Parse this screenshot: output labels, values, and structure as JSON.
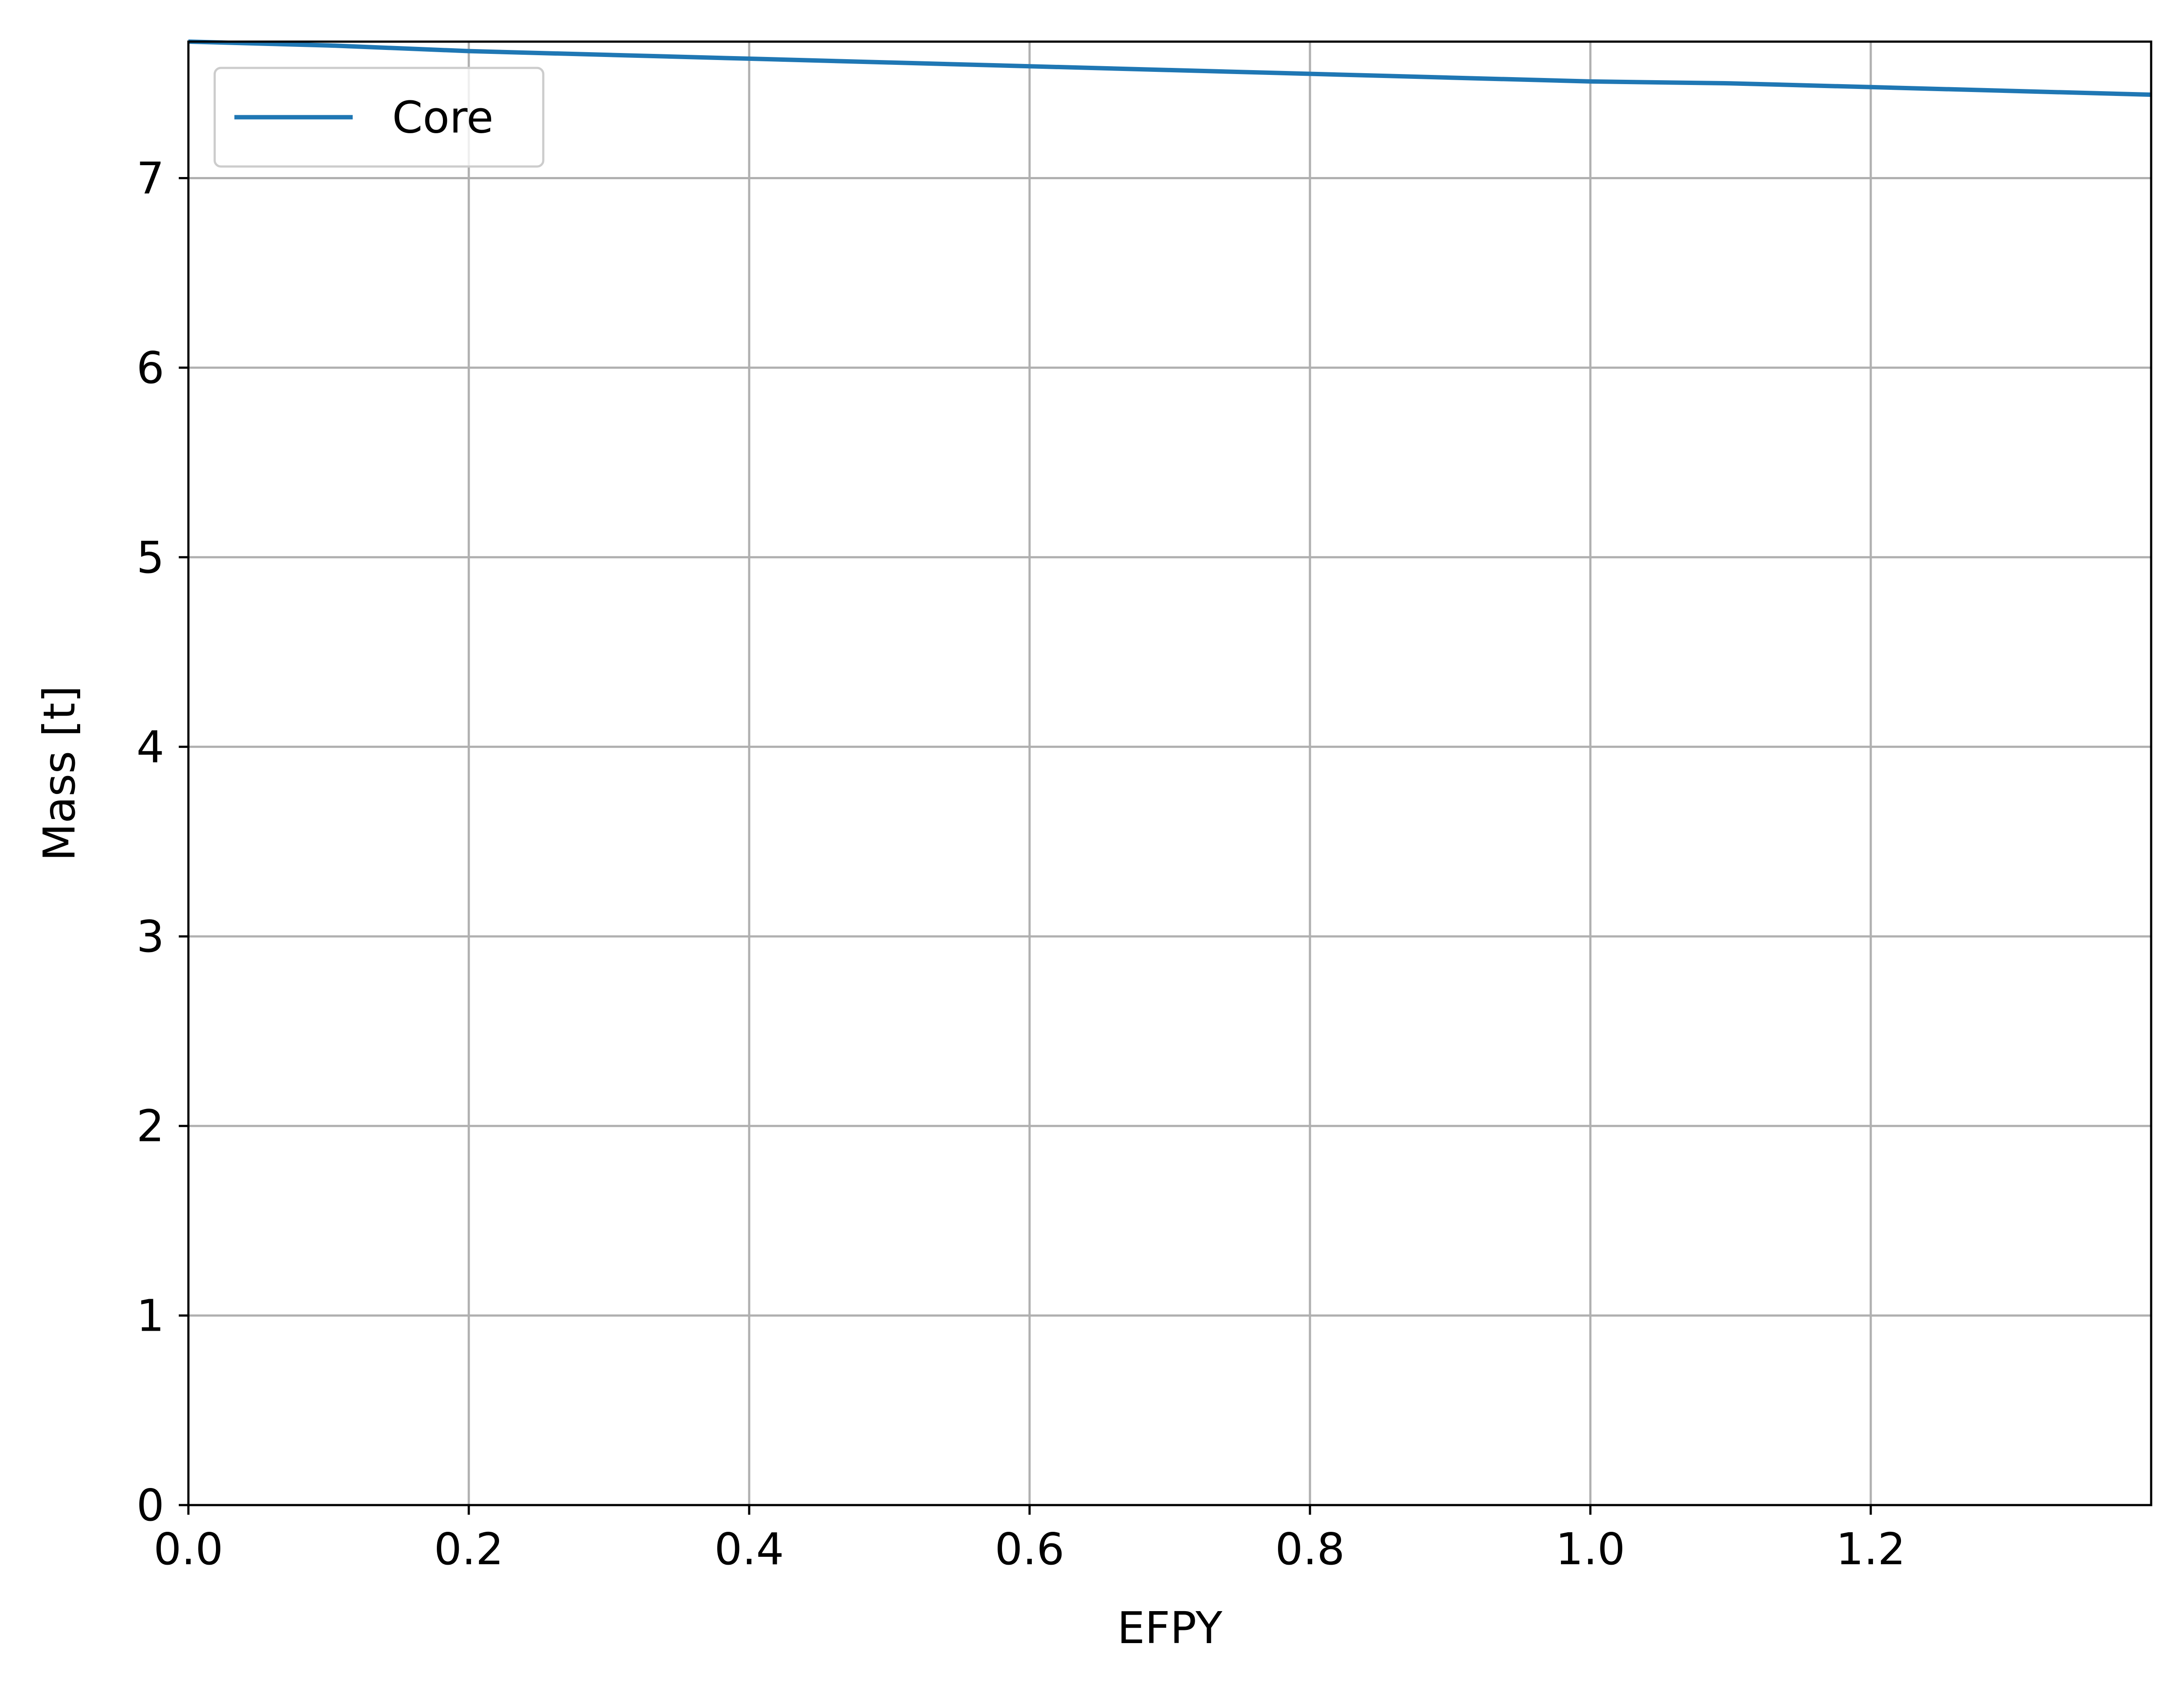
{
  "chart_data": {
    "type": "line",
    "title": "",
    "xlabel": "EFPY",
    "ylabel": "Mass [t]",
    "xlim": [
      0.0,
      1.4
    ],
    "ylim": [
      0,
      7.72
    ],
    "xticks": [
      0.0,
      0.2,
      0.4,
      0.6,
      0.8,
      1.0,
      1.2
    ],
    "xtick_labels": [
      "0.0",
      "0.2",
      "0.4",
      "0.6",
      "0.8",
      "1.0",
      "1.2"
    ],
    "yticks": [
      0,
      1,
      2,
      3,
      4,
      5,
      6,
      7
    ],
    "ytick_labels": [
      "0",
      "1",
      "2",
      "3",
      "4",
      "5",
      "6",
      "7"
    ],
    "grid": true,
    "legend_position": "upper-left",
    "series": [
      {
        "name": "Core",
        "color": "#1f77b4",
        "x": [
          0.0,
          0.1,
          0.2,
          0.3,
          0.4,
          0.5,
          0.6,
          0.7,
          0.8,
          0.9,
          1.0,
          1.1,
          1.2,
          1.3,
          1.4
        ],
        "y": [
          7.72,
          7.7,
          7.67,
          7.65,
          7.63,
          7.61,
          7.59,
          7.57,
          7.55,
          7.53,
          7.51,
          7.5,
          7.48,
          7.46,
          7.44
        ]
      }
    ]
  }
}
